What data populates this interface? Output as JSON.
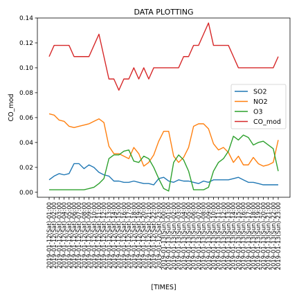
{
  "chart_data": {
    "type": "line",
    "title": "DATA PLOTTING",
    "xlabel": "[TIMES]",
    "ylabel": "CO_mod",
    "ylim": [
      -0.004,
      0.14
    ],
    "yticks": [
      0.0,
      0.02,
      0.04,
      0.06,
      0.08,
      0.1,
      0.12,
      0.14
    ],
    "ytick_labels": [
      "0.00",
      "0.02",
      "0.04",
      "0.06",
      "0.08",
      "0.10",
      "0.12",
      "0.14"
    ],
    "legend_position": "center-right",
    "grid": false,
    "categories": [
      "2019-01-12(Sat)-01:00",
      "2019-01-12(Sat)-02:00",
      "2019-01-12(Sat)-03:00",
      "2019-01-12(Sat)-04:00",
      "2019-01-12(Sat)-05:00",
      "2019-01-12(Sat)-06:00",
      "2019-01-12(Sat)-07:00",
      "2019-01-12(Sat)-08:00",
      "2019-01-12(Sat)-09:00",
      "2019-01-12(Sat)-10:00",
      "2019-01-12(Sat)-11:00",
      "2019-01-12(Sat)-12:00",
      "2019-01-12(Sat)-13:00",
      "2019-01-12(Sat)-14:00",
      "2019-01-12(Sat)-15:00",
      "2019-01-12(Sat)-16:00",
      "2019-01-12(Sat)-17:00",
      "2019-01-12(Sat)-18:00",
      "2019-01-12(Sat)-19:00",
      "2019-01-12(Sat)-20:00",
      "2019-01-12(Sat)-21:00",
      "2019-01-12(Sat)-22:00",
      "2019-01-12(Sat)-23:00",
      "2019-01-13(Sun)-00:00",
      "2019-01-13(Sun)-01:00",
      "2019-01-13(Sun)-02:00",
      "2019-01-13(Sun)-03:00",
      "2019-01-13(Sun)-04:00",
      "2019-01-13(Sun)-05:00",
      "2019-01-13(Sun)-06:00",
      "2019-01-13(Sun)-07:00",
      "2019-01-13(Sun)-08:00",
      "2019-01-13(Sun)-09:00",
      "2019-01-13(Sun)-10:00",
      "2019-01-13(Sun)-11:00",
      "2019-01-13(Sun)-12:00",
      "2019-01-13(Sun)-13:00",
      "2019-01-13(Sun)-14:00",
      "2019-01-13(Sun)-15:00",
      "2019-01-13(Sun)-16:00",
      "2019-01-13(Sun)-17:00",
      "2019-01-13(Sun)-18:00",
      "2019-01-13(Sun)-19:00",
      "2019-01-13(Sun)-20:00",
      "2019-01-13(Sun)-21:00",
      "2019-01-13(Sun)-22:00",
      "2019-01-13(Sun)-23:00"
    ],
    "series": [
      {
        "name": "SO2",
        "color": "#1f77b4",
        "values": [
          0.01,
          0.013,
          0.015,
          0.014,
          0.015,
          0.023,
          0.023,
          0.019,
          0.022,
          0.02,
          0.016,
          0.014,
          0.013,
          0.009,
          0.009,
          0.008,
          0.008,
          0.009,
          0.008,
          0.007,
          0.007,
          0.006,
          0.011,
          0.012,
          0.009,
          0.008,
          0.01,
          0.009,
          0.009,
          0.008,
          0.007,
          0.009,
          0.008,
          0.01,
          0.01,
          0.01,
          0.01,
          0.011,
          0.012,
          0.01,
          0.008,
          0.008,
          0.007,
          0.006,
          0.006,
          0.006,
          0.006
        ]
      },
      {
        "name": "NO2",
        "color": "#ff7f0e",
        "values": [
          0.063,
          0.062,
          0.058,
          0.057,
          0.053,
          0.052,
          0.053,
          0.054,
          0.055,
          0.057,
          0.059,
          0.056,
          0.037,
          0.031,
          0.031,
          0.029,
          0.027,
          0.036,
          0.031,
          0.021,
          0.024,
          0.03,
          0.041,
          0.049,
          0.049,
          0.029,
          0.024,
          0.028,
          0.036,
          0.053,
          0.055,
          0.055,
          0.051,
          0.039,
          0.034,
          0.036,
          0.032,
          0.024,
          0.029,
          0.022,
          0.022,
          0.028,
          0.023,
          0.021,
          0.022,
          0.024,
          0.042
        ]
      },
      {
        "name": "O3",
        "color": "#2ca02c",
        "values": [
          0.002,
          0.002,
          0.002,
          0.002,
          0.002,
          0.002,
          0.002,
          0.002,
          0.003,
          0.004,
          0.007,
          0.011,
          0.027,
          0.03,
          0.03,
          0.033,
          0.034,
          0.025,
          0.024,
          0.029,
          0.027,
          0.02,
          0.011,
          0.003,
          0.001,
          0.024,
          0.03,
          0.026,
          0.017,
          0.002,
          0.002,
          0.002,
          0.004,
          0.017,
          0.024,
          0.027,
          0.033,
          0.045,
          0.042,
          0.046,
          0.044,
          0.038,
          0.04,
          0.041,
          0.038,
          0.035,
          0.017
        ]
      },
      {
        "name": "CO_mod",
        "color": "#d62728",
        "values": [
          0.109,
          0.118,
          0.118,
          0.118,
          0.118,
          0.109,
          0.109,
          0.109,
          0.109,
          0.118,
          0.127,
          0.109,
          0.091,
          0.091,
          0.082,
          0.091,
          0.091,
          0.1,
          0.091,
          0.1,
          0.091,
          0.1,
          0.1,
          0.1,
          0.1,
          0.1,
          0.1,
          0.109,
          0.109,
          0.118,
          0.118,
          0.127,
          0.136,
          0.118,
          0.118,
          0.118,
          0.118,
          0.109,
          0.1,
          0.1,
          0.1,
          0.1,
          0.1,
          0.1,
          0.1,
          0.1,
          0.109
        ]
      }
    ]
  }
}
